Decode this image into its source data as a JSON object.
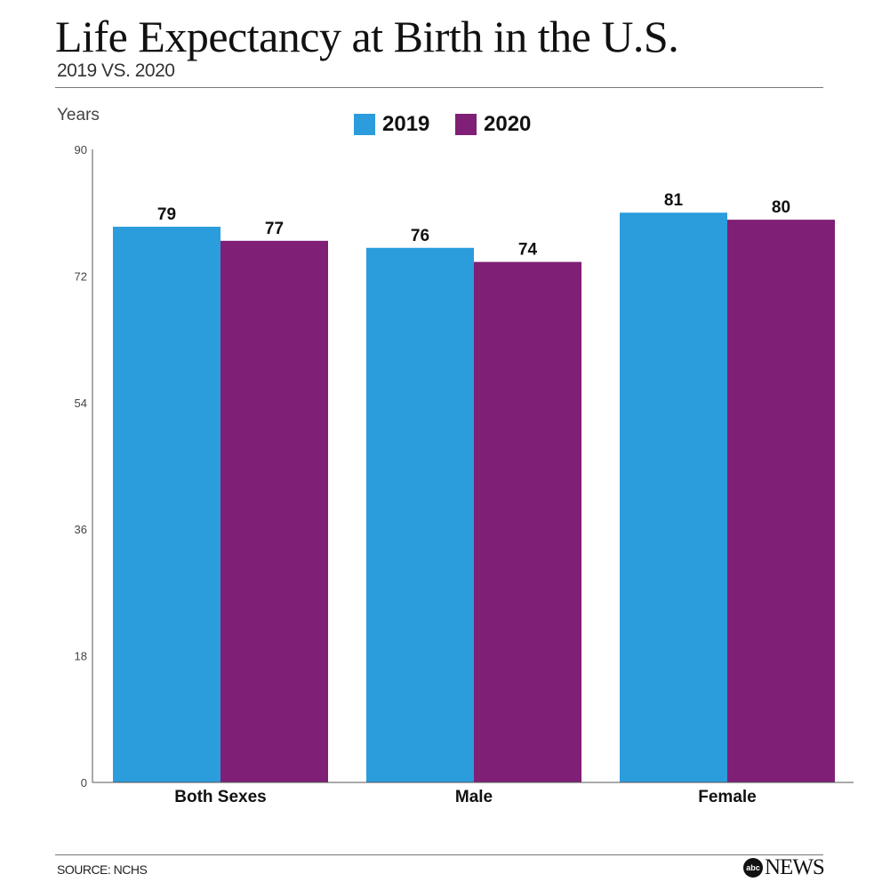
{
  "header": {
    "title": "Life Expectancy at Birth in the U.S.",
    "subtitle": "2019 VS. 2020"
  },
  "footer": {
    "source": "SOURCE: NCHS",
    "logo_text": "abc NEWS"
  },
  "colors": {
    "2019": "#2b9cdc",
    "2020": "#7f1f76"
  },
  "chart_data": {
    "type": "bar",
    "title": "Life Expectancy at Birth in the U.S.",
    "subtitle": "2019 VS. 2020",
    "ylabel": "Years",
    "xlabel": "",
    "categories": [
      "Both Sexes",
      "Male",
      "Female"
    ],
    "series": [
      {
        "name": "2019",
        "values": [
          79,
          76,
          81
        ]
      },
      {
        "name": "2020",
        "values": [
          77,
          74,
          80
        ]
      }
    ],
    "ylim": [
      0,
      90
    ],
    "yticks": [
      0,
      18,
      36,
      54,
      72,
      90
    ],
    "grid": false,
    "legend": "top-center",
    "data_labels": true
  }
}
